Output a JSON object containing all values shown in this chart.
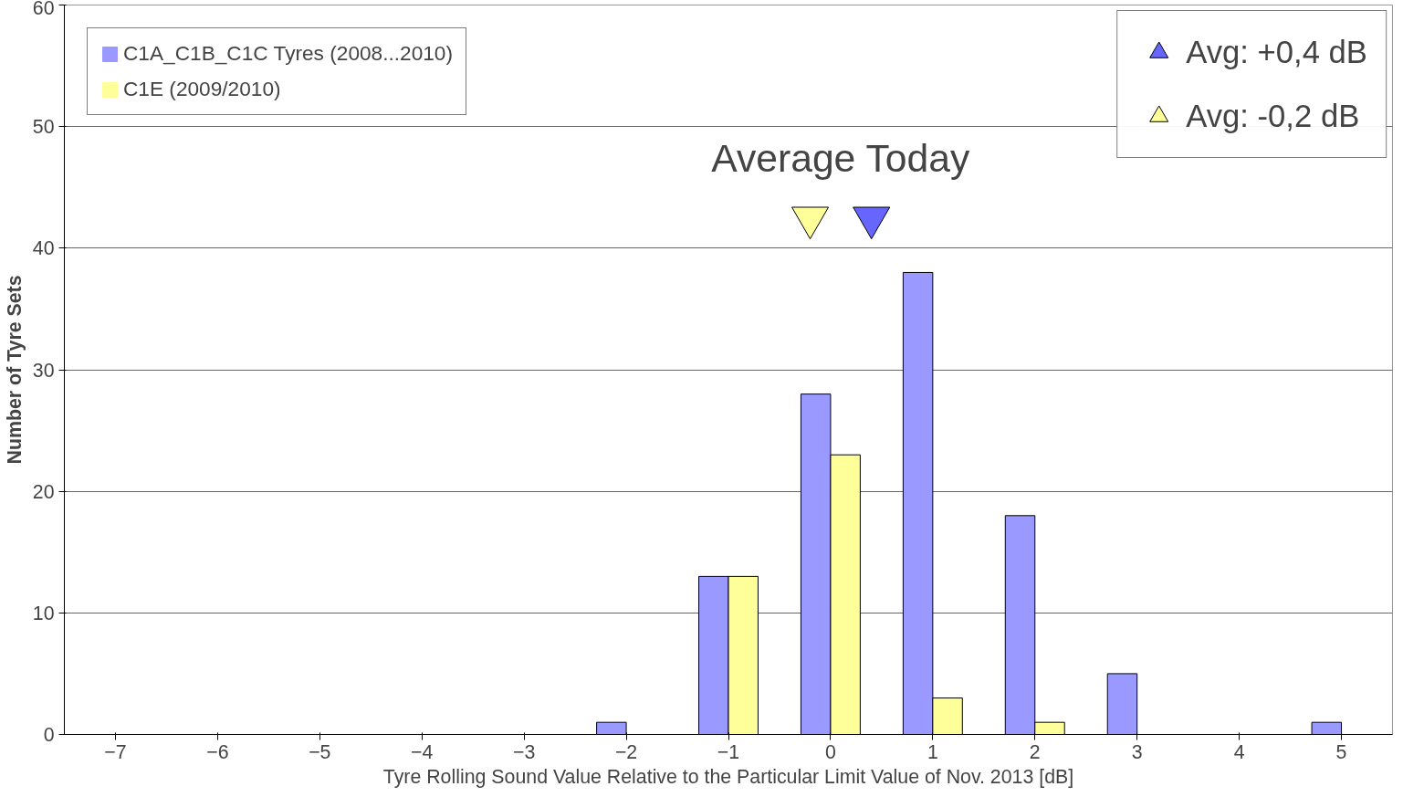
{
  "chart_data": {
    "type": "bar",
    "xlabel": "Tyre Rolling Sound Value Relative to the Particular Limit Value of Nov. 2013 [dB]",
    "ylabel": "Number of Tyre Sets",
    "x": [
      -7,
      -6,
      -5,
      -4,
      -3,
      -2,
      -1,
      0,
      1,
      2,
      3,
      4,
      5
    ],
    "series": [
      {
        "name": "C1A_C1B_C1C Tyres (2008...2010)",
        "color": "#9999ff",
        "values": [
          0,
          0,
          0,
          0,
          0,
          1,
          13,
          28,
          38,
          18,
          5,
          0,
          1
        ]
      },
      {
        "name": "C1E (2009/2010)",
        "color": "#ffff99",
        "values": [
          0,
          0,
          0,
          0,
          0,
          0,
          13,
          23,
          3,
          1,
          0,
          0,
          0
        ]
      },
      {
        "name": "Avg: +0,4 dB",
        "type": "scatter",
        "color": "#6666ff",
        "x": [
          0.4
        ],
        "values": [
          42.5
        ]
      },
      {
        "name": "Avg: -0,2 dB",
        "type": "scatter",
        "color": "#ffff99",
        "x": [
          -0.2
        ],
        "values": [
          42.5
        ]
      }
    ],
    "annotations": [
      "Average Today"
    ],
    "xlim": [
      -7.5,
      5.5
    ],
    "xticks": [
      -7,
      -6,
      -5,
      -4,
      -3,
      -2,
      -1,
      0,
      1,
      2,
      3,
      4,
      5
    ],
    "ylim": [
      0,
      60
    ],
    "yticks": [
      0,
      10,
      20,
      30,
      40,
      50,
      60
    ],
    "grid": "y",
    "legend": "top left",
    "marker": "triangle"
  }
}
